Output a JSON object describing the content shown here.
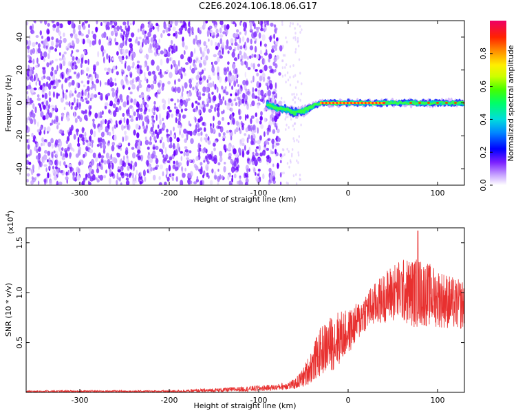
{
  "title": "C2E6.2024.106.18.06.G17",
  "chart_data": [
    {
      "type": "heatmap",
      "xlabel": "Height of straight line (km)",
      "ylabel": "Frequency (Hz)",
      "xlim": [
        -360,
        130
      ],
      "ylim": [
        -50,
        50
      ],
      "xticks": [
        -300,
        -200,
        -100,
        0,
        100
      ],
      "yticks": [
        -40,
        -20,
        0,
        20,
        40
      ],
      "noise_region_x": [
        -360,
        -75
      ],
      "signal_ridge": {
        "x": [
          -90,
          -80,
          -70,
          -60,
          -50,
          -40,
          -30,
          -20,
          0,
          20,
          40,
          60,
          80,
          100,
          120,
          130
        ],
        "frequency": [
          -1,
          -3,
          -4,
          -6,
          -5,
          -2,
          0,
          0,
          0,
          0,
          0,
          0,
          0,
          0,
          0,
          0
        ]
      },
      "colorbar": {
        "label": "Normalized spectral amplitude",
        "range": [
          0,
          1
        ],
        "ticks": [
          0.0,
          0.2,
          0.4,
          0.6,
          0.8
        ]
      },
      "grid": false
    },
    {
      "type": "line",
      "xlabel": "Height of straight line (km)",
      "ylabel": "SNR (10 * v/v)",
      "multiplier_label": "(x10",
      "multiplier_exp": "4",
      "xlim": [
        -360,
        130
      ],
      "ylim": [
        0,
        1.65
      ],
      "xticks": [
        -300,
        -200,
        -100,
        0,
        100
      ],
      "yticks": [
        0.5,
        1.0,
        1.5
      ],
      "ytick_labels": [
        "0.5",
        "1.0",
        "1.5"
      ],
      "color": "#e8302f",
      "envelope": {
        "x": [
          -360,
          -200,
          -150,
          -100,
          -80,
          -60,
          -50,
          -40,
          -30,
          -20,
          -10,
          0,
          10,
          20,
          30,
          40,
          50,
          60,
          70,
          80,
          90,
          100,
          110,
          120,
          130
        ],
        "mean": [
          0.01,
          0.01,
          0.02,
          0.04,
          0.05,
          0.08,
          0.15,
          0.28,
          0.42,
          0.48,
          0.55,
          0.6,
          0.7,
          0.82,
          0.88,
          0.95,
          1.0,
          1.02,
          1.0,
          1.0,
          0.98,
          0.95,
          0.92,
          0.88,
          0.88
        ],
        "spread": [
          0.01,
          0.01,
          0.02,
          0.03,
          0.03,
          0.05,
          0.1,
          0.18,
          0.25,
          0.28,
          0.28,
          0.22,
          0.2,
          0.2,
          0.22,
          0.25,
          0.3,
          0.32,
          0.35,
          0.35,
          0.32,
          0.3,
          0.28,
          0.26,
          0.25
        ]
      },
      "peak": {
        "x": 78,
        "y": 1.62
      },
      "grid": false
    }
  ]
}
